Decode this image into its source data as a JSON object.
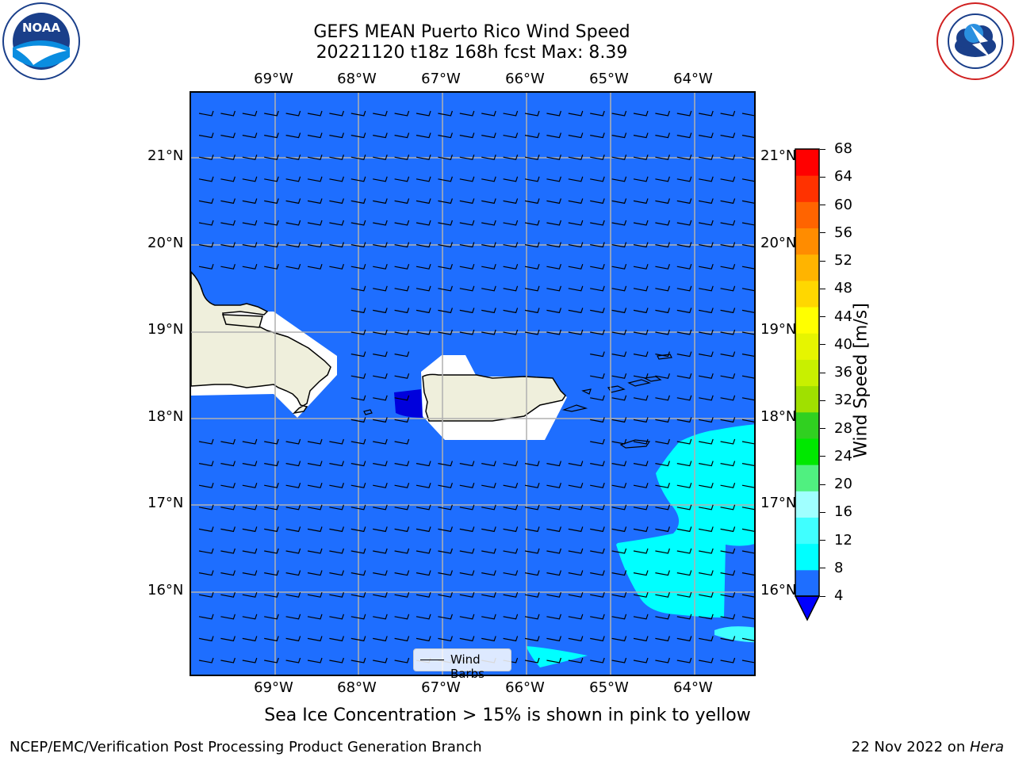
{
  "title": {
    "line1": "GEFS MEAN Puerto Rico Wind Speed",
    "line2": "20221120 t18z 168h fcst   Max: 8.39"
  },
  "logos": {
    "left": {
      "name": "noaa-logo",
      "text": "NOAA",
      "ring_text": "NATIONAL OCEANIC AND ATMOSPHERIC ADMINISTRATION · U.S. DEPARTMENT OF COMMERCE"
    },
    "right": {
      "name": "nws-logo",
      "ring_text": "NATIONAL WEATHER SERVICE"
    }
  },
  "map": {
    "longitude_labels": [
      "69°W",
      "68°W",
      "67°W",
      "66°W",
      "65°W",
      "64°W"
    ],
    "latitude_labels": [
      "21°N",
      "20°N",
      "19°N",
      "18°N",
      "17°N",
      "16°N"
    ],
    "legend_label": "Wind Barbs",
    "ocean_color": "#1e6eff",
    "land_color": "#efefdc",
    "shade_colors": [
      "#0000dc",
      "#1e6eff",
      "#00ffff",
      "#40ffff"
    ]
  },
  "colorbar": {
    "label": "Wind Speed [m/s]",
    "ticks": [
      "4",
      "8",
      "12",
      "16",
      "20",
      "24",
      "28",
      "32",
      "36",
      "40",
      "44",
      "48",
      "52",
      "56",
      "60",
      "64",
      "68"
    ],
    "colors": [
      "#1e6eff",
      "#00ffff",
      "#40ffff",
      "#a0ffff",
      "#50f080",
      "#00e800",
      "#30d020",
      "#a0e000",
      "#c8f000",
      "#e6f500",
      "#ffff00",
      "#ffd700",
      "#ffb400",
      "#ff8c00",
      "#ff6400",
      "#ff3200",
      "#ff0000"
    ],
    "extend_color": "#0000ff"
  },
  "subtitle": "Sea Ice Concentration > 15% is shown in pink to yellow",
  "footer": {
    "left": "NCEP/EMC/Verification Post Processing Product Generation Branch",
    "right_date": "22 Nov 2022 on ",
    "right_machine": "Hera"
  }
}
